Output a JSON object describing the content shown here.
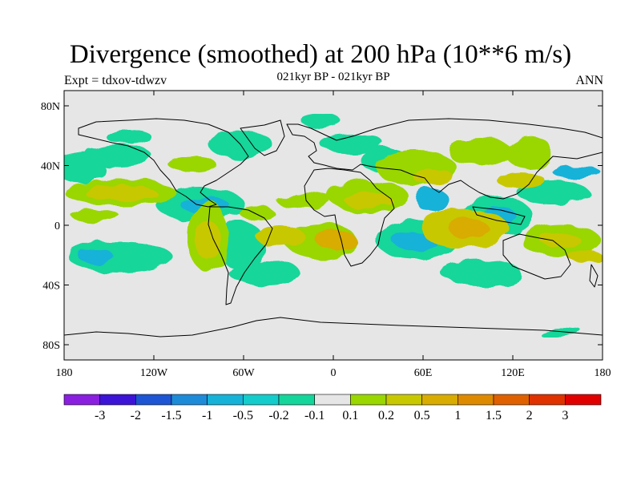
{
  "header": {
    "title": "Divergence (smoothed) at 200 hPa (10**6 m/s)",
    "subtitle": "021kyr BP - 021kyr BP",
    "left_label": "Expt = tdxov-tdwzv",
    "right_label": "ANN"
  },
  "map": {
    "projection": "cylindrical equidistant",
    "background_color": "#e6e6e6",
    "lat_ticks": [
      "80N",
      "40N",
      "0",
      "40S",
      "80S"
    ],
    "lon_ticks": [
      "180",
      "120W",
      "60W",
      "0",
      "60E",
      "120E",
      "180"
    ]
  },
  "colorbar": {
    "labels": [
      "-3",
      "-2",
      "-1.5",
      "-1",
      "-0.5",
      "-0.2",
      "-0.1",
      "0.1",
      "0.2",
      "0.5",
      "1",
      "1.5",
      "2",
      "3"
    ],
    "colors": [
      "#8a1fe0",
      "#3c14d8",
      "#1d55d4",
      "#1e8bd8",
      "#16b2d8",
      "#14cccc",
      "#14d69a",
      "#e6e6e6",
      "#9ad600",
      "#c8c800",
      "#d8ac00",
      "#de8a00",
      "#e06000",
      "#e03200",
      "#e00000"
    ]
  }
}
